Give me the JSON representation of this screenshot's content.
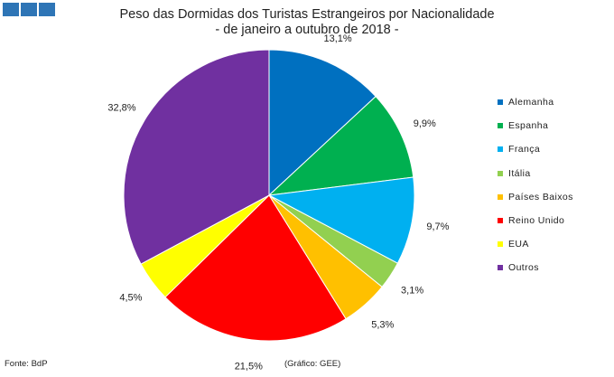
{
  "header": {
    "title_line1": "Peso das Dormidas dos Turistas Estrangeiros por Nacionalidade",
    "title_line2": "- de janeiro a outubro de 2018 -"
  },
  "footer": {
    "source": "Fonte: BdP",
    "credit": "(Gráfico: GEE)"
  },
  "chart_data": {
    "type": "pie",
    "title": "Peso das Dormidas dos Turistas Estrangeiros por Nacionalidade - de janeiro a outubro de 2018 -",
    "legend_position": "right",
    "start": "top, clockwise",
    "slices": [
      {
        "name": "Alemanha",
        "value": 13.1,
        "label": "13,1%",
        "color": "#0070c0"
      },
      {
        "name": "Espanha",
        "value": 9.9,
        "label": "9,9%",
        "color": "#00b050"
      },
      {
        "name": "França",
        "value": 9.7,
        "label": "9,7%",
        "color": "#00b0f0"
      },
      {
        "name": "Itália",
        "value": 3.1,
        "label": "3,1%",
        "color": "#92d050"
      },
      {
        "name": "Países Baixos",
        "value": 5.3,
        "label": "5,3%",
        "color": "#ffc000"
      },
      {
        "name": "Reino Unido",
        "value": 21.5,
        "label": "21,5%",
        "color": "#ff0000"
      },
      {
        "name": "EUA",
        "value": 4.5,
        "label": "4,5%",
        "color": "#ffff00"
      },
      {
        "name": "Outros",
        "value": 32.8,
        "label": "32,8%",
        "color": "#7030a0"
      }
    ]
  }
}
